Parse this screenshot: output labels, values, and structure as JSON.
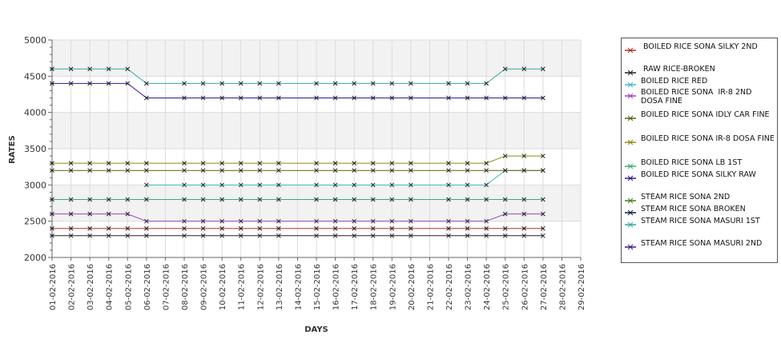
{
  "chart_data": {
    "type": "line",
    "title": "",
    "xlabel": "DAYS",
    "ylabel": "RATES",
    "ylim": [
      2000,
      5000
    ],
    "yticks": [
      "2000",
      "2500",
      "3000",
      "3500",
      "4000",
      "4500",
      "5000"
    ],
    "categories": [
      "01-02-2016",
      "02-02-2016",
      "03-02-2016",
      "04-02-2016",
      "05-02-2016",
      "06-02-2016",
      "07-02-2016",
      "08-02-2016",
      "09-02-2016",
      "10-02-2016",
      "11-02-2016",
      "12-02-2016",
      "13-02-2016",
      "14-02-2016",
      "15-02-2016",
      "16-02-2016",
      "17-02-2016",
      "18-02-2016",
      "19-02-2016",
      "20-02-2016",
      "21-02-2016",
      "22-02-2016",
      "23-02-2016",
      "24-02-2016",
      "25-02-2016",
      "26-02-2016",
      "27-02-2016",
      "28-02-2016",
      "29-02-2016"
    ],
    "grid": true,
    "legend_position": "right",
    "series": [
      {
        "name": " BOILED RICE SONA SILKY 2ND",
        "color": "#b03020",
        "values": [
          2400,
          2400,
          2400,
          2400,
          2400,
          2400,
          null,
          2400,
          2400,
          2400,
          2400,
          2400,
          2400,
          null,
          2400,
          2400,
          2400,
          2400,
          2400,
          2400,
          null,
          2400,
          2400,
          2400,
          2400,
          2400,
          2400,
          null,
          null
        ]
      },
      {
        "name": " RAW RICE-BROKEN",
        "color": "#202020",
        "values": [
          2300,
          2300,
          2300,
          2300,
          2300,
          2300,
          null,
          2300,
          2300,
          2300,
          2300,
          2300,
          2300,
          null,
          2300,
          2300,
          2300,
          2300,
          2300,
          2300,
          null,
          2300,
          2300,
          2300,
          2300,
          2300,
          2300,
          null,
          null
        ]
      },
      {
        "name": "BOILED RICE RED",
        "color": "#40b8c8",
        "values": [
          null,
          null,
          null,
          null,
          null,
          3000,
          null,
          3000,
          3000,
          3000,
          3000,
          3000,
          3000,
          null,
          3000,
          3000,
          3000,
          3000,
          3000,
          3000,
          null,
          3000,
          3000,
          3000,
          3200,
          3200,
          3200,
          null,
          null
        ]
      },
      {
        "name": "BOILED RICE SONA  IR-8 2ND DOSA FINE",
        "color": "#9a40c8",
        "values": [
          2600,
          2600,
          2600,
          2600,
          2600,
          2500,
          null,
          2500,
          2500,
          2500,
          2500,
          2500,
          2500,
          null,
          2500,
          2500,
          2500,
          2500,
          2500,
          2500,
          null,
          2500,
          2500,
          2500,
          2600,
          2600,
          2600,
          null,
          null
        ]
      },
      {
        "name": "BOILED RICE SONA IDLY CAR FINE",
        "color": "#5a6010",
        "values": [
          3200,
          3200,
          3200,
          3200,
          3200,
          3200,
          null,
          3200,
          3200,
          3200,
          3200,
          3200,
          3200,
          null,
          3200,
          3200,
          3200,
          3200,
          3200,
          3200,
          null,
          3200,
          3200,
          3200,
          3200,
          3200,
          3200,
          null,
          null
        ]
      },
      {
        "name": "BOILED RICE SONA IR-8 DOSA FINE",
        "color": "#8a8a10",
        "values": [
          3300,
          3300,
          3300,
          3300,
          3300,
          3300,
          null,
          3300,
          3300,
          3300,
          3300,
          3300,
          3300,
          null,
          3300,
          3300,
          3300,
          3300,
          3300,
          3300,
          null,
          3300,
          3300,
          3300,
          3400,
          3400,
          3400,
          null,
          null
        ]
      },
      {
        "name": "BOILED RICE SONA LB 1ST",
        "color": "#40a870",
        "values": [
          2800,
          2800,
          2800,
          2800,
          2800,
          2800,
          null,
          2800,
          2800,
          2800,
          2800,
          2800,
          2800,
          null,
          2800,
          2800,
          2800,
          2800,
          2800,
          2800,
          null,
          2800,
          2800,
          2800,
          2800,
          2800,
          2800,
          null,
          null
        ]
      },
      {
        "name": "BOILED RICE SONA SILKY RAW",
        "color": "#301890",
        "values": [
          4400,
          4400,
          4400,
          4400,
          4400,
          4200,
          null,
          4200,
          4200,
          4200,
          4200,
          4200,
          4200,
          null,
          4200,
          4200,
          4200,
          4200,
          4200,
          4200,
          null,
          4200,
          4200,
          4200,
          4200,
          4200,
          4200,
          null,
          null
        ]
      },
      {
        "name": "STEAM RICE SONA 2ND",
        "color": "#408020",
        "values": [
          null,
          null,
          null,
          null,
          null,
          null,
          null,
          null,
          null,
          null,
          null,
          null,
          null,
          null,
          null,
          null,
          null,
          null,
          null,
          null,
          null,
          null,
          null,
          null,
          null,
          null,
          null,
          null,
          null
        ]
      },
      {
        "name": "STEAM RICE SONA BROKEN",
        "color": "#101848",
        "values": [
          null,
          null,
          null,
          null,
          null,
          null,
          null,
          null,
          null,
          null,
          null,
          null,
          null,
          null,
          null,
          null,
          null,
          null,
          null,
          null,
          null,
          null,
          null,
          null,
          null,
          null,
          null,
          null,
          null
        ]
      },
      {
        "name": "STEAM RICE SONA MASURI 1ST",
        "color": "#30a8a0",
        "values": [
          4600,
          4600,
          4600,
          4600,
          4600,
          4400,
          null,
          4400,
          4400,
          4400,
          4400,
          4400,
          4400,
          null,
          4400,
          4400,
          4400,
          4400,
          4400,
          4400,
          null,
          4400,
          4400,
          4400,
          4600,
          4600,
          4600,
          null,
          null
        ]
      },
      {
        "name": "STEAM RICE SONA MASURI 2ND",
        "color": "#401880",
        "values": [
          null,
          null,
          null,
          null,
          null,
          null,
          null,
          null,
          null,
          null,
          null,
          null,
          null,
          null,
          null,
          null,
          null,
          null,
          null,
          null,
          null,
          null,
          null,
          null,
          null,
          null,
          null,
          null,
          null
        ]
      }
    ]
  }
}
